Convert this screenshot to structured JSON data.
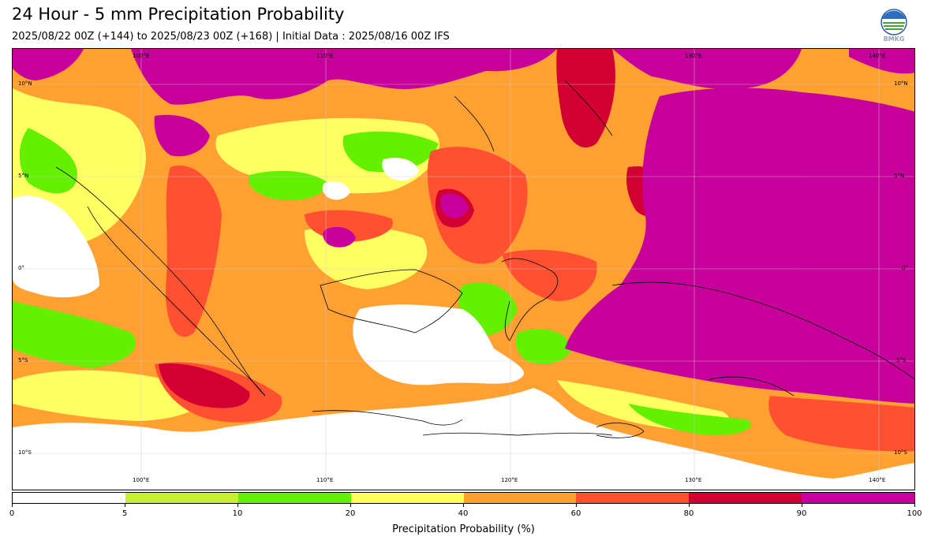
{
  "title": "24 Hour - 5 mm Precipitation Probability",
  "subtitle": "2025/08/22 00Z (+144) to 2025/08/23 00Z (+168) | Initial Data : 2025/08/16 00Z IFS",
  "logo_text": "BMKG",
  "map": {
    "longitude_labels_top": [
      "100°E",
      "110°E",
      "130°E",
      "140°E"
    ],
    "longitude_labels_bottom": [
      "100°E",
      "110°E",
      "120°E",
      "130°E",
      "140°E"
    ],
    "latitude_labels_left": [
      "10°N",
      "5°N",
      "0°",
      "5°S",
      "10°S"
    ],
    "latitude_labels_right": [
      "10°N",
      "5°N",
      "0°",
      "5°S",
      "10°S"
    ]
  },
  "colorbar": {
    "ticks": [
      "0",
      "5",
      "10",
      "20",
      "40",
      "60",
      "80",
      "90",
      "100"
    ],
    "colors": [
      "#ffffff",
      "#c8f032",
      "#64f000",
      "#ffff64",
      "#ffa032",
      "#ff5032",
      "#d20032",
      "#c8009b"
    ],
    "label": "Precipitation Probability (%)"
  },
  "regions": [
    {
      "level": "40-60",
      "color": "#ffa032"
    },
    {
      "level": "20-40",
      "color": "#ffff64"
    },
    {
      "level": "10-20",
      "color": "#64f000"
    },
    {
      "level": "60-80",
      "color": "#ff5032"
    },
    {
      "level": "80-90",
      "color": "#d20032"
    },
    {
      "level": "90-100",
      "color": "#c8009b"
    },
    {
      "level": "0-5",
      "color": "#ffffff"
    }
  ]
}
